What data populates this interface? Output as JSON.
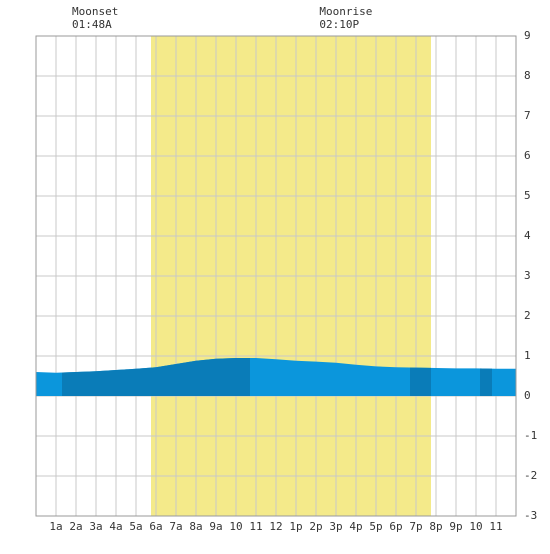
{
  "chart_data": {
    "type": "area",
    "x": [
      0,
      1,
      2,
      3,
      4,
      5,
      6,
      7,
      8,
      9,
      10,
      11,
      12,
      13,
      14,
      15,
      16,
      17,
      18,
      19,
      20,
      21,
      22,
      23,
      24
    ],
    "series": [
      {
        "color": "#0b96dc",
        "dark_color": "#0a7cb8",
        "values": [
          0.6,
          0.58,
          0.6,
          0.62,
          0.65,
          0.68,
          0.72,
          0.8,
          0.88,
          0.93,
          0.95,
          0.95,
          0.92,
          0.88,
          0.86,
          0.83,
          0.78,
          0.74,
          0.72,
          0.71,
          0.7,
          0.69,
          0.69,
          0.68,
          0.68
        ]
      }
    ],
    "dark_ranges": [
      [
        1.3,
        10.7
      ],
      [
        18.7,
        19.75
      ],
      [
        22.2,
        22.8
      ]
    ],
    "daylight": [
      5.75,
      19.75
    ],
    "daylight_color": "#f4ea8a",
    "events": [
      {
        "label": "Moonset",
        "time": "01:48A",
        "hour": 1.8
      },
      {
        "label": "Moonrise",
        "time": "02:10P",
        "hour": 14.17
      }
    ],
    "xlim": [
      0,
      24
    ],
    "xticks": [
      {
        "value": 1,
        "label": "1a"
      },
      {
        "value": 2,
        "label": "2a"
      },
      {
        "value": 3,
        "label": "3a"
      },
      {
        "value": 4,
        "label": "4a"
      },
      {
        "value": 5,
        "label": "5a"
      },
      {
        "value": 6,
        "label": "6a"
      },
      {
        "value": 7,
        "label": "7a"
      },
      {
        "value": 8,
        "label": "8a"
      },
      {
        "value": 9,
        "label": "9a"
      },
      {
        "value": 10,
        "label": "10"
      },
      {
        "value": 11,
        "label": "11"
      },
      {
        "value": 12,
        "label": "12"
      },
      {
        "value": 13,
        "label": "1p"
      },
      {
        "value": 14,
        "label": "2p"
      },
      {
        "value": 15,
        "label": "3p"
      },
      {
        "value": 16,
        "label": "4p"
      },
      {
        "value": 17,
        "label": "5p"
      },
      {
        "value": 18,
        "label": "6p"
      },
      {
        "value": 19,
        "label": "7p"
      },
      {
        "value": 20,
        "label": "8p"
      },
      {
        "value": 21,
        "label": "9p"
      },
      {
        "value": 22,
        "label": "10"
      },
      {
        "value": 23,
        "label": "11"
      }
    ],
    "ylim": [
      -3,
      9
    ],
    "yticks": [
      -3,
      -2,
      -1,
      0,
      1,
      2,
      3,
      4,
      5,
      6,
      7,
      8,
      9
    ],
    "grid": true
  }
}
